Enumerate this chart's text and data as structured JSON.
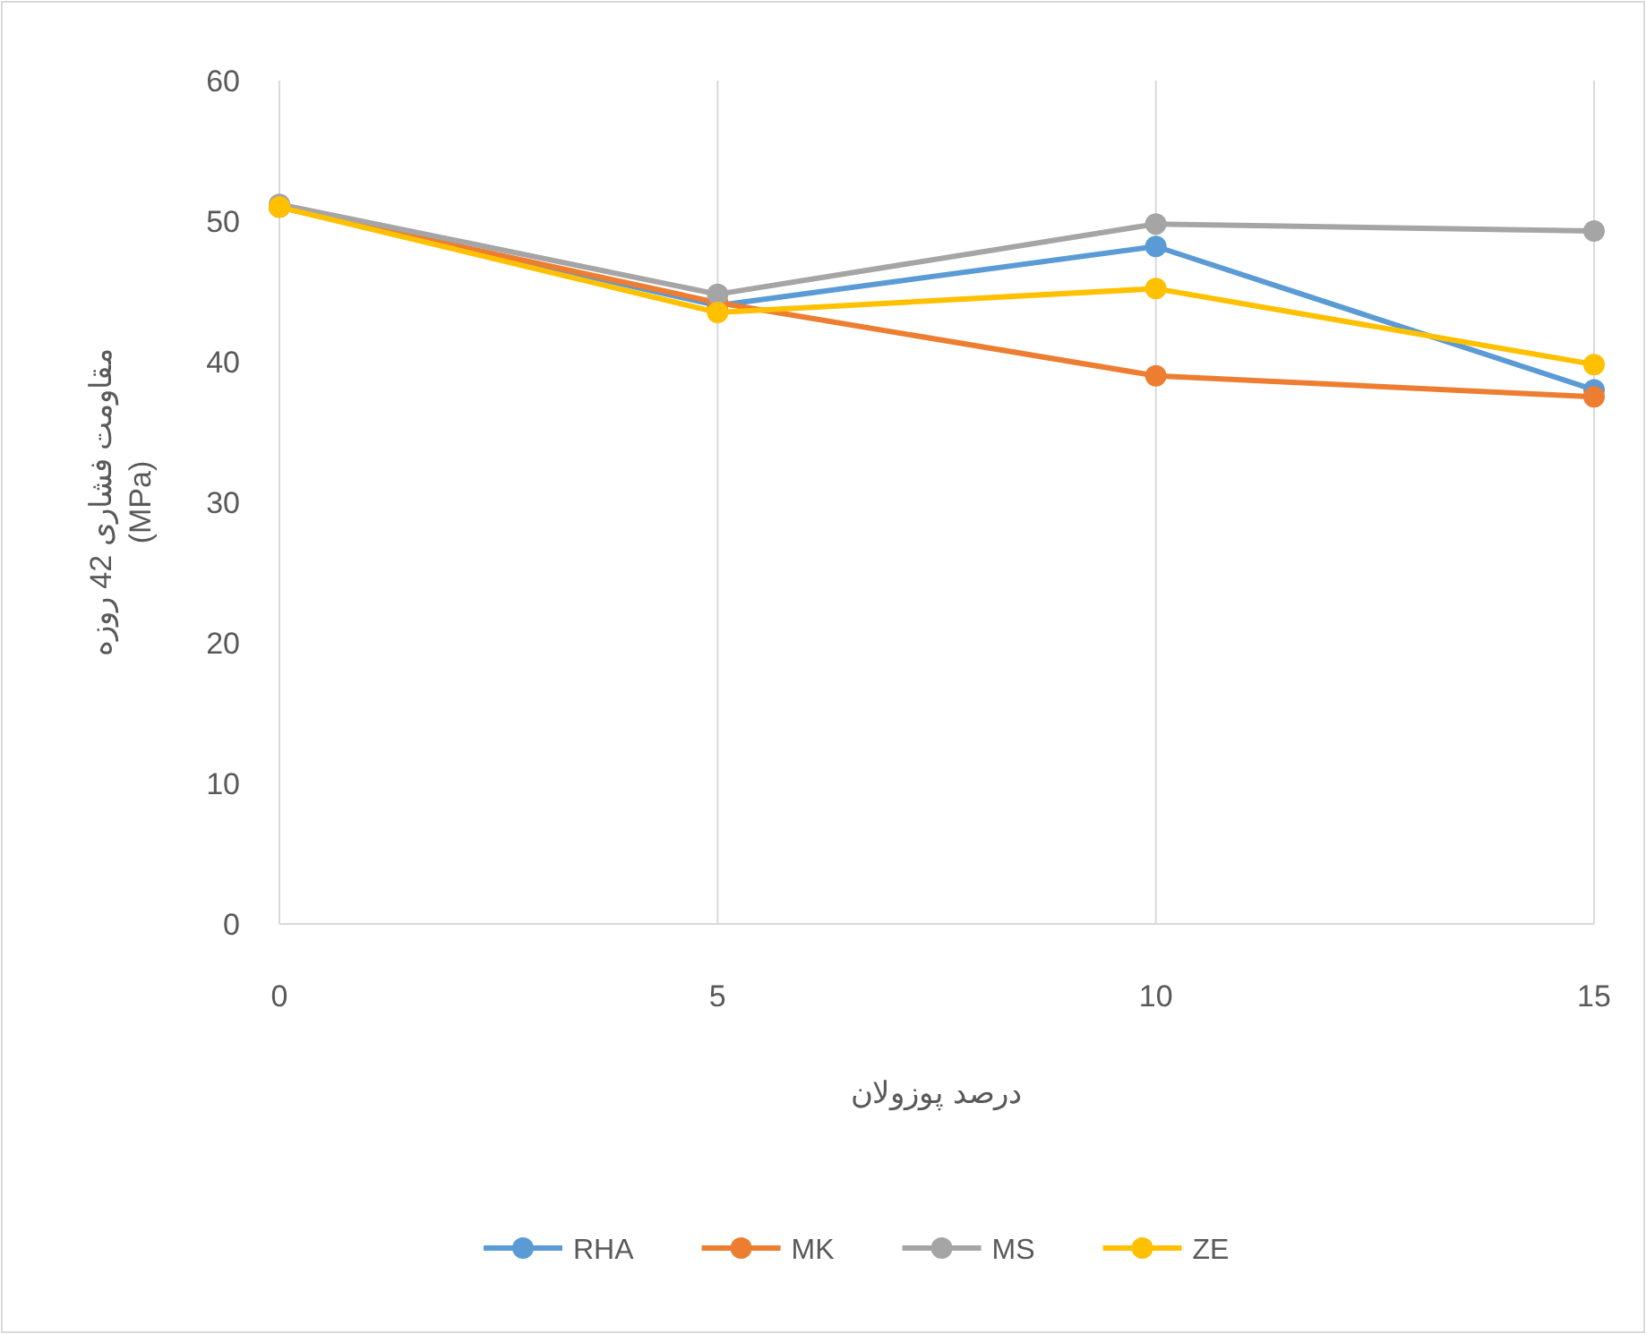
{
  "chart_data": {
    "type": "line",
    "xlabel": "درصد پوزولان",
    "ylabel": "مقاومت فشاری 42 روزه\n(MPa)",
    "x": [
      0,
      5,
      10,
      15
    ],
    "xlim": [
      0,
      15
    ],
    "xticks": [
      0,
      5,
      10,
      15
    ],
    "ylim": [
      0,
      60
    ],
    "yticks": [
      0,
      10,
      20,
      30,
      40,
      50,
      60
    ],
    "grid": "x",
    "legend": "bottom",
    "marker": "circle",
    "line_style": "solid",
    "series": [
      {
        "name": "RHA",
        "color": "#5b9bd5",
        "values": [
          51,
          44,
          48.2,
          38
        ]
      },
      {
        "name": "MK",
        "color": "#ed7d31",
        "values": [
          51,
          44.2,
          39,
          37.5
        ]
      },
      {
        "name": "MS",
        "color": "#a5a5a5",
        "values": [
          51.2,
          44.8,
          49.8,
          49.3
        ]
      },
      {
        "name": "ZE",
        "color": "#ffc000",
        "values": [
          51,
          43.5,
          45.2,
          39.8
        ]
      }
    ]
  }
}
